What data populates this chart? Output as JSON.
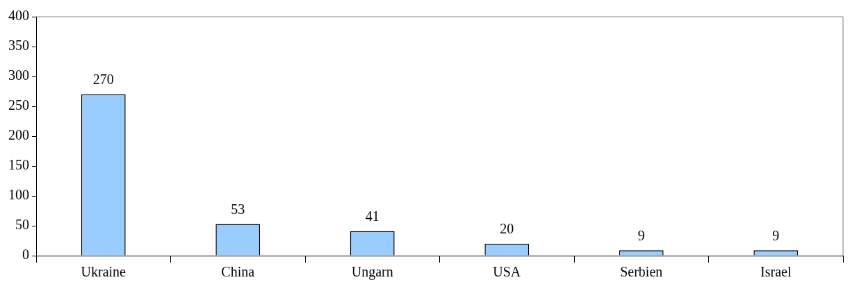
{
  "chart_data": {
    "type": "bar",
    "categories": [
      "Ukraine",
      "China",
      "Ungarn",
      "USA",
      "Serbien",
      "Israel"
    ],
    "values": [
      270,
      53,
      41,
      20,
      9,
      9
    ],
    "color": "#99ccff",
    "ylim": [
      0,
      400
    ],
    "yticks": [
      0,
      50,
      100,
      150,
      200,
      250,
      300,
      350,
      400
    ],
    "grid": false,
    "legend": false,
    "data_labels": true
  }
}
